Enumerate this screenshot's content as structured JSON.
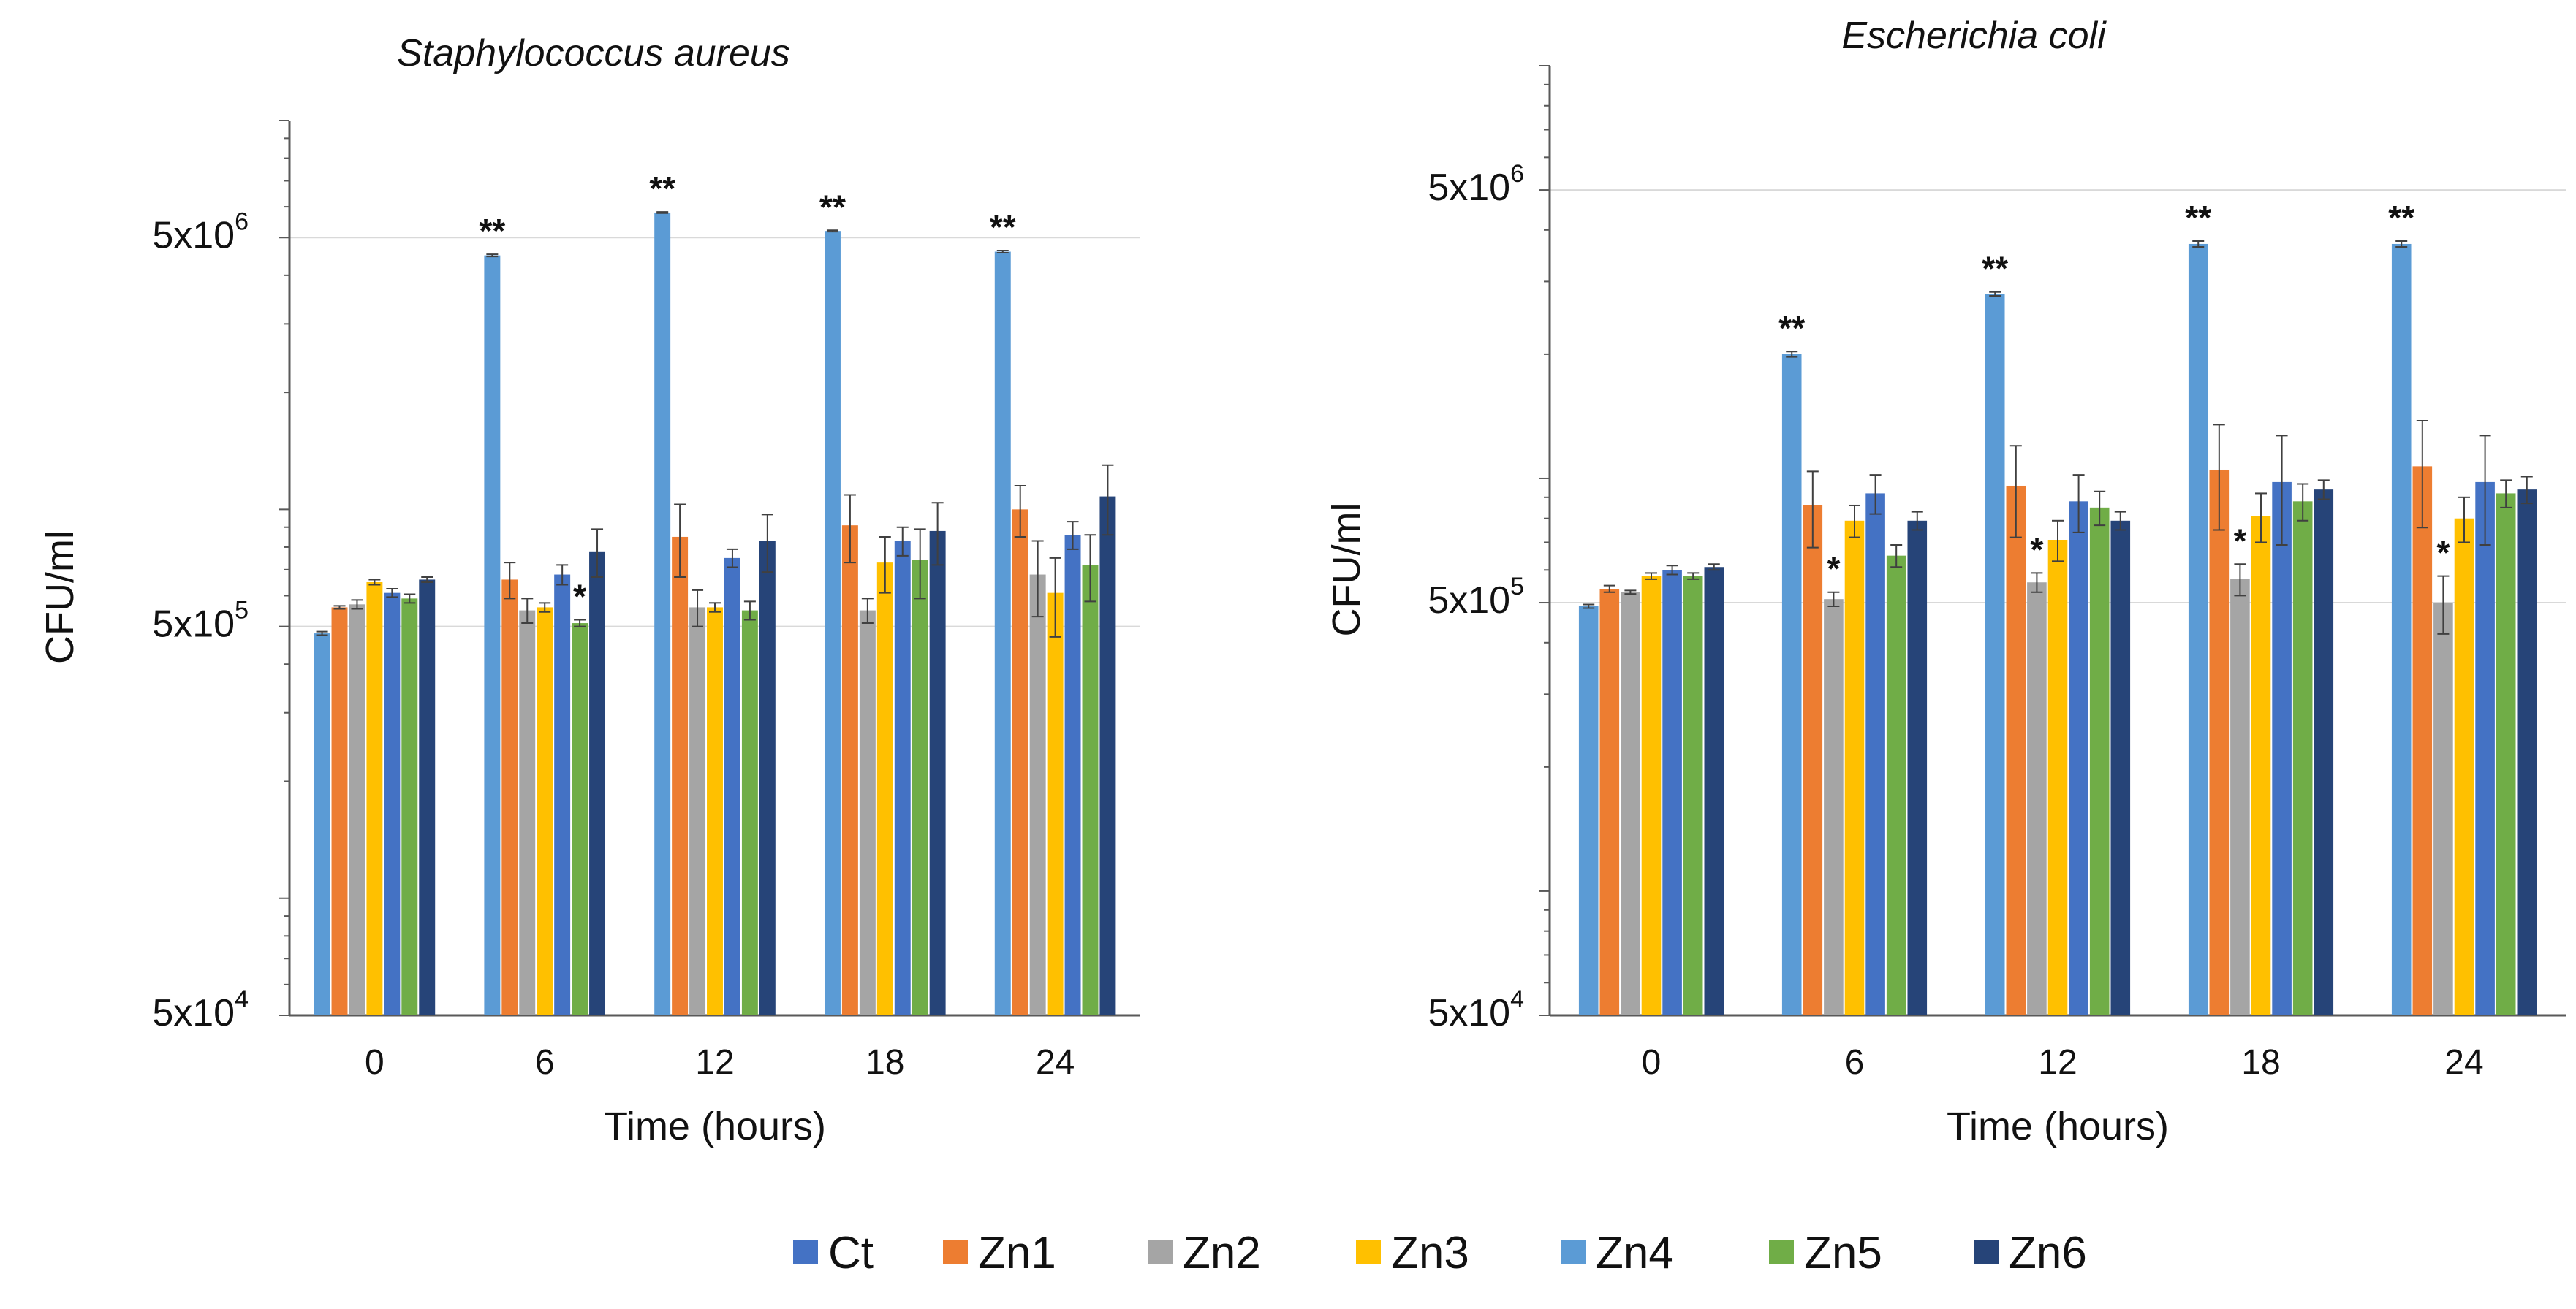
{
  "legend": [
    {
      "name": "Ct",
      "color": "#4472C4"
    },
    {
      "name": "Zn1",
      "color": "#ED7D31"
    },
    {
      "name": "Zn2",
      "color": "#A5A5A5"
    },
    {
      "name": "Zn3",
      "color": "#FFC000"
    },
    {
      "name": "Zn4",
      "color": "#5B9BD5"
    },
    {
      "name": "Zn5",
      "color": "#70AD47"
    },
    {
      "name": "Zn6",
      "color": "#264478"
    }
  ],
  "chart_data": [
    {
      "type": "bar",
      "title": "Staphylococcus aureus",
      "xlabel": "Time (hours)",
      "ylabel": "CFU/ml",
      "yscale": "log",
      "ylim": [
        50000,
        10000000
      ],
      "yticks": [
        50000,
        500000,
        5000000
      ],
      "ytick_labels": [
        "5x10^4",
        "5x10^5",
        "5x10^6"
      ],
      "grid": "horizontal",
      "categories": [
        "0",
        "6",
        "12",
        "18",
        "24"
      ],
      "series": [
        {
          "name": "Zn4",
          "values": [
            480000,
            4500000,
            5800000,
            5200000,
            4600000
          ],
          "errors": [
            5000,
            30000,
            20000,
            20000,
            30000
          ]
        },
        {
          "name": "Zn1",
          "values": [
            560000,
            660000,
            850000,
            910000,
            1000000
          ],
          "errors": [
            5000,
            70000,
            180000,
            180000,
            150000
          ]
        },
        {
          "name": "Zn2",
          "values": [
            570000,
            550000,
            560000,
            550000,
            680000
          ],
          "errors": [
            15000,
            40000,
            60000,
            40000,
            150000
          ]
        },
        {
          "name": "Zn3",
          "values": [
            650000,
            560000,
            560000,
            730000,
            610000
          ],
          "errors": [
            10000,
            15000,
            15000,
            120000,
            140000
          ]
        },
        {
          "name": "Ct",
          "values": [
            610000,
            680000,
            750000,
            830000,
            860000
          ],
          "errors": [
            15000,
            40000,
            40000,
            70000,
            70000
          ]
        },
        {
          "name": "Zn5",
          "values": [
            590000,
            510000,
            550000,
            740000,
            720000
          ],
          "errors": [
            15000,
            10000,
            30000,
            150000,
            140000
          ]
        },
        {
          "name": "Zn6",
          "values": [
            660000,
            780000,
            830000,
            880000,
            1080000
          ],
          "errors": [
            10000,
            110000,
            140000,
            160000,
            220000
          ]
        }
      ],
      "annotations": [
        {
          "category": "6",
          "series": "Zn4",
          "text": "**"
        },
        {
          "category": "6",
          "series": "Zn5",
          "text": "*"
        },
        {
          "category": "12",
          "series": "Zn4",
          "text": "**"
        },
        {
          "category": "18",
          "series": "Zn4",
          "text": "**"
        },
        {
          "category": "24",
          "series": "Zn4",
          "text": "**"
        }
      ]
    },
    {
      "type": "bar",
      "title": "Escherichia coli",
      "xlabel": "Time (hours)",
      "ylabel": "CFU/ml",
      "yscale": "log",
      "ylim": [
        50000,
        10000000
      ],
      "yticks": [
        50000,
        500000,
        5000000
      ],
      "ytick_labels": [
        "5x10^4",
        "5x10^5",
        "5x10^6"
      ],
      "grid": "horizontal",
      "categories": [
        "0",
        "6",
        "12",
        "18",
        "24"
      ],
      "series": [
        {
          "name": "Zn4",
          "values": [
            490000,
            2000000,
            2800000,
            3700000,
            3700000
          ],
          "errors": [
            5000,
            30000,
            30000,
            60000,
            60000
          ]
        },
        {
          "name": "Zn1",
          "values": [
            540000,
            860000,
            960000,
            1050000,
            1070000
          ],
          "errors": [
            10000,
            180000,
            240000,
            300000,
            310000
          ]
        },
        {
          "name": "Zn2",
          "values": [
            530000,
            510000,
            560000,
            570000,
            500000
          ],
          "errors": [
            5000,
            20000,
            30000,
            50000,
            80000
          ]
        },
        {
          "name": "Zn3",
          "values": [
            580000,
            790000,
            710000,
            810000,
            800000
          ],
          "errors": [
            10000,
            70000,
            80000,
            110000,
            100000
          ]
        },
        {
          "name": "Ct",
          "values": [
            600000,
            920000,
            880000,
            980000,
            980000
          ],
          "errors": [
            15000,
            100000,
            140000,
            290000,
            290000
          ]
        },
        {
          "name": "Zn5",
          "values": [
            580000,
            650000,
            850000,
            880000,
            920000
          ],
          "errors": [
            10000,
            40000,
            80000,
            90000,
            70000
          ]
        },
        {
          "name": "Zn6",
          "values": [
            610000,
            790000,
            790000,
            940000,
            940000
          ],
          "errors": [
            10000,
            40000,
            40000,
            50000,
            70000
          ]
        }
      ],
      "annotations": [
        {
          "category": "6",
          "series": "Zn4",
          "text": "**"
        },
        {
          "category": "6",
          "series": "Zn2",
          "text": "*"
        },
        {
          "category": "12",
          "series": "Zn4",
          "text": "**"
        },
        {
          "category": "12",
          "series": "Zn2",
          "text": "*"
        },
        {
          "category": "18",
          "series": "Zn4",
          "text": "**"
        },
        {
          "category": "18",
          "series": "Zn2",
          "text": "*"
        },
        {
          "category": "24",
          "series": "Zn4",
          "text": "**"
        },
        {
          "category": "24",
          "series": "Zn2",
          "text": "*"
        }
      ]
    }
  ]
}
